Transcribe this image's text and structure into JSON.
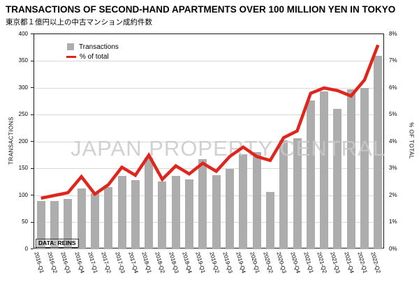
{
  "chart_data": {
    "type": "combo-bar-line",
    "title": "TRANSACTIONS OF SECOND-HAND APARTMENTS OVER 100 MILLION YEN IN TOKYO",
    "subtitle": "東京都１億円以上の中古マンション成約件数",
    "categories": [
      "2016-Q1",
      "2016-Q2",
      "2016-Q3",
      "2016-Q4",
      "2017-Q1",
      "2017-Q2",
      "2017-Q3",
      "2017-Q4",
      "2018-Q1",
      "2018-Q2",
      "2018-Q3",
      "2018-Q4",
      "2019-Q1",
      "2019-Q2",
      "2019-Q3",
      "2019-Q4",
      "2020-Q1",
      "2020-Q2",
      "2020-Q3",
      "2020-Q4",
      "2021-Q1",
      "2021-Q2",
      "2021-Q3",
      "2021-Q4",
      "2022-Q1",
      "2022-Q2"
    ],
    "series": [
      {
        "name": "Transactions",
        "type": "bar",
        "axis": "left",
        "color": "#adadad",
        "values": [
          90,
          90,
          93,
          113,
          104,
          115,
          136,
          128,
          170,
          126,
          136,
          130,
          168,
          138,
          150,
          176,
          180,
          107,
          203,
          207,
          277,
          294,
          261,
          298,
          300,
          360
        ]
      },
      {
        "name": "% of total",
        "type": "line",
        "axis": "right",
        "color": "#e0261c",
        "values": [
          1.9,
          2.0,
          2.1,
          2.7,
          2.05,
          2.4,
          3.05,
          2.75,
          3.5,
          2.6,
          3.1,
          2.8,
          3.2,
          2.9,
          3.45,
          3.8,
          3.45,
          3.3,
          4.15,
          4.4,
          5.8,
          6.0,
          5.9,
          5.7,
          6.3,
          7.6
        ]
      }
    ],
    "y_left": {
      "label": "TRANSACTIONS",
      "min": 0,
      "max": 400,
      "step": 50
    },
    "y_right": {
      "label": "% OF TOTAL",
      "min": 0,
      "max": 8,
      "step": 1,
      "suffix": "%"
    },
    "grid": true,
    "legend_position": "top-left",
    "source": "DATA: REINS",
    "watermark": "JAPAN PROPERTY CENTRAL"
  }
}
